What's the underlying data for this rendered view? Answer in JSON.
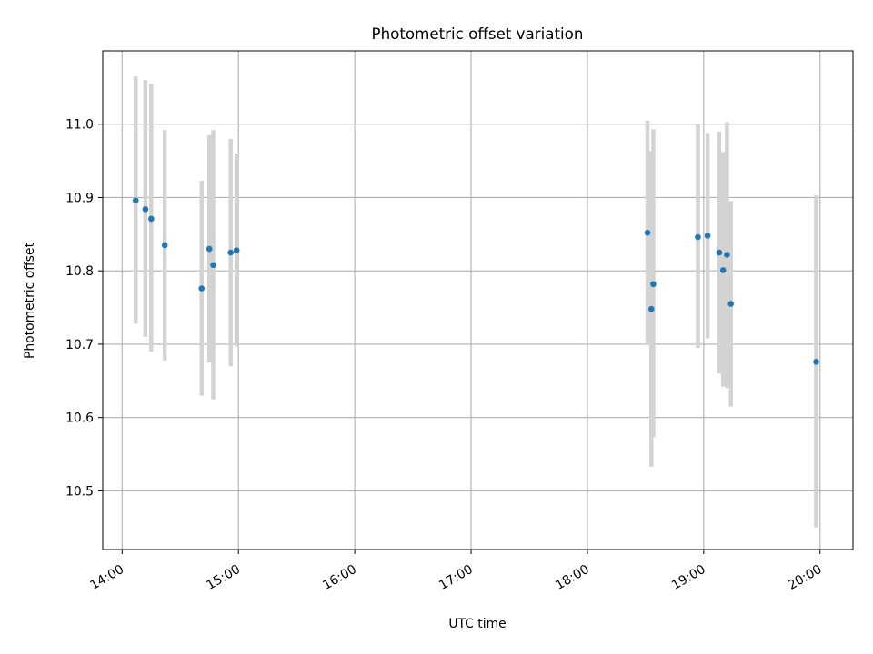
{
  "chart_data": {
    "type": "scatter",
    "title": "Photometric offset variation",
    "xlabel": "UTC time",
    "ylabel": "Photometric offset",
    "grid": true,
    "x_ticks": [
      "14:00",
      "15:00",
      "16:00",
      "17:00",
      "18:00",
      "19:00",
      "20:00"
    ],
    "y_ticks": [
      "10.5",
      "10.6",
      "10.7",
      "10.8",
      "10.9",
      "11.0"
    ],
    "xlim": [
      "13:50",
      "20:17"
    ],
    "ylim": [
      10.42,
      11.1
    ],
    "colors": {
      "point": "#1f77b4",
      "errorbar": "#d3d3d3"
    },
    "series": [
      {
        "points": [
          {
            "x": "14:07",
            "y": 10.896,
            "lo": 10.728,
            "hi": 11.065
          },
          {
            "x": "14:12",
            "y": 10.884,
            "lo": 10.71,
            "hi": 11.06
          },
          {
            "x": "14:15",
            "y": 10.871,
            "lo": 10.69,
            "hi": 11.055
          },
          {
            "x": "14:22",
            "y": 10.835,
            "lo": 10.678,
            "hi": 10.992
          },
          {
            "x": "14:41",
            "y": 10.776,
            "lo": 10.63,
            "hi": 10.923
          },
          {
            "x": "14:45",
            "y": 10.83,
            "lo": 10.675,
            "hi": 10.985
          },
          {
            "x": "14:47",
            "y": 10.808,
            "lo": 10.625,
            "hi": 10.992
          },
          {
            "x": "14:56",
            "y": 10.825,
            "lo": 10.67,
            "hi": 10.98
          },
          {
            "x": "14:59",
            "y": 10.828,
            "lo": 10.697,
            "hi": 10.96
          },
          {
            "x": "18:31",
            "y": 10.852,
            "lo": 10.7,
            "hi": 11.005
          },
          {
            "x": "18:33",
            "y": 10.748,
            "lo": 10.533,
            "hi": 10.963
          },
          {
            "x": "18:34",
            "y": 10.782,
            "lo": 10.573,
            "hi": 10.993
          },
          {
            "x": "18:57",
            "y": 10.846,
            "lo": 10.695,
            "hi": 11.0
          },
          {
            "x": "19:02",
            "y": 10.848,
            "lo": 10.708,
            "hi": 10.988
          },
          {
            "x": "19:08",
            "y": 10.825,
            "lo": 10.66,
            "hi": 10.99
          },
          {
            "x": "19:10",
            "y": 10.801,
            "lo": 10.642,
            "hi": 10.962
          },
          {
            "x": "19:12",
            "y": 10.822,
            "lo": 10.64,
            "hi": 11.003
          },
          {
            "x": "19:14",
            "y": 10.755,
            "lo": 10.615,
            "hi": 10.895
          },
          {
            "x": "19:58",
            "y": 10.676,
            "lo": 10.45,
            "hi": 10.903
          }
        ]
      }
    ]
  }
}
